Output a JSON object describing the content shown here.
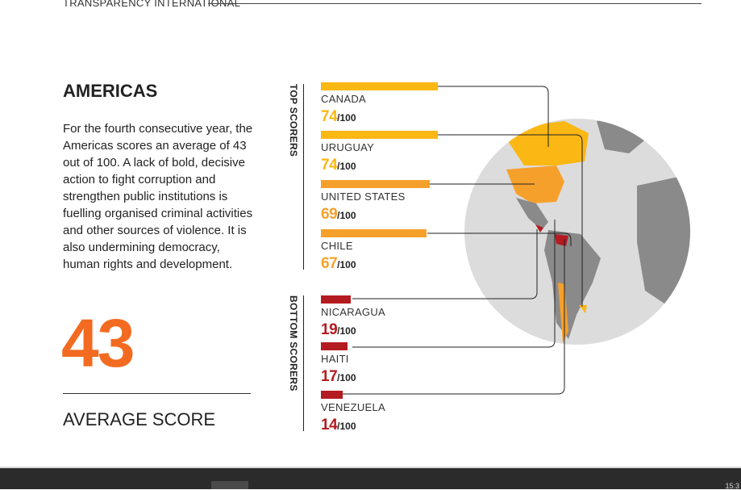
{
  "header": {
    "organisation": "TRANSPARENCY INTERNATIONAL"
  },
  "region": {
    "title": "AMERICAS",
    "description": "For the fourth consecutive year, the Americas scores an average of 43 out of 100. A lack of bold, decisive action to fight corruption and strengthen public institutions is fuelling organised criminal activities and other sources of violence. It is also undermining democracy, human rights and development.",
    "average_score": "43",
    "average_label": "AVERAGE SCORE"
  },
  "top_label": "TOP SCORERS",
  "bottom_label": "BOTTOM SCORERS",
  "scale_suffix": "/100",
  "colors": {
    "accent": "#f26b21",
    "yellow": "#fbb713",
    "orange": "#f6a02c",
    "red": "#b31b20"
  },
  "chart_data": {
    "type": "bar",
    "max": 100,
    "top_scorers": [
      {
        "country": "CANADA",
        "score": 74
      },
      {
        "country": "URUGUAY",
        "score": 74
      },
      {
        "country": "UNITED STATES",
        "score": 69
      },
      {
        "country": "CHILE",
        "score": 67
      }
    ],
    "bottom_scorers": [
      {
        "country": "NICARAGUA",
        "score": 19
      },
      {
        "country": "HAITI",
        "score": 17
      },
      {
        "country": "VENEZUELA",
        "score": 14
      }
    ]
  },
  "taskbar": {
    "clock": "15:3"
  }
}
